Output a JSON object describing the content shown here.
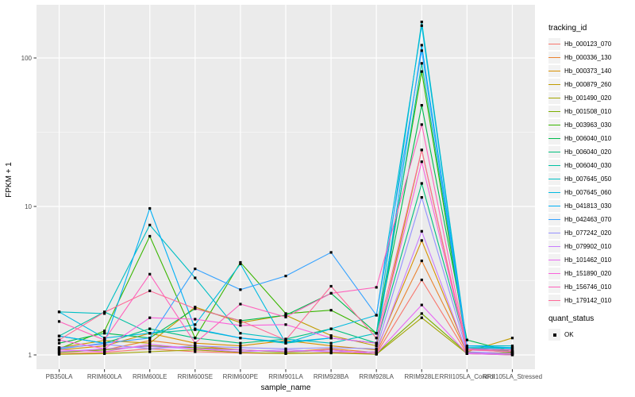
{
  "figure": {
    "background": "#FFFFFF",
    "panel_bg": "#EBEBEB",
    "grid_color": "#FFFFFF",
    "tick_color": "#333333",
    "tick_label_color": "#4D4D4D",
    "point_color": "#000000"
  },
  "legend": {
    "tracking_title": "tracking_id",
    "quant_title": "quant_status",
    "quant_items": [
      {
        "label": "OK"
      }
    ]
  },
  "chart_data": {
    "type": "line",
    "title": "",
    "xlabel": "sample_name",
    "ylabel": "FPKM + 1",
    "y_scale": "log10",
    "y_ticks": [
      1,
      10,
      100
    ],
    "y_minor_ticks": [
      3.1623,
      31.623
    ],
    "ylim": [
      1,
      200
    ],
    "grid": "white major+minor horizontal, white major vertical, grey panel",
    "legend_position": "right",
    "point_shape": "small black square (quant_status = OK)",
    "categories": [
      "PB350LA",
      "RRIM600LA",
      "RRIM600LE",
      "RRIM600SE",
      "RRIM600PE",
      "RRIM901LA",
      "RRIM928BA",
      "RRIM928LA",
      "RRIM928LE",
      "RRII105LA_Control",
      "RRII105LA_Stressed"
    ],
    "series": [
      {
        "name": "Hb_000123_070",
        "color": "#F8766D",
        "values": [
          1.02,
          1.04,
          1.1,
          1.05,
          1.03,
          1.02,
          1.04,
          1.02,
          3.2,
          1.02,
          1.01
        ]
      },
      {
        "name": "Hb_000336_130",
        "color": "#EA8331",
        "values": [
          1.05,
          1.08,
          1.25,
          1.15,
          1.08,
          1.05,
          1.1,
          1.04,
          4.3,
          1.04,
          1.02
        ]
      },
      {
        "name": "Hb_000373_140",
        "color": "#D89000",
        "values": [
          1.08,
          1.15,
          1.4,
          1.2,
          1.15,
          1.25,
          1.15,
          1.08,
          5.9,
          1.04,
          1.03
        ]
      },
      {
        "name": "Hb_000879_260",
        "color": "#C09B00",
        "values": [
          1.12,
          1.25,
          1.2,
          2.1,
          1.65,
          1.85,
          1.35,
          1.15,
          24,
          1.05,
          1.3
        ]
      },
      {
        "name": "Hb_001490_020",
        "color": "#A3A500",
        "values": [
          1.01,
          1.02,
          1.05,
          1.08,
          1.04,
          1.02,
          1.03,
          1.01,
          1.78,
          1.02,
          1.0
        ]
      },
      {
        "name": "Hb_001508_010",
        "color": "#7CAE00",
        "values": [
          1.04,
          1.08,
          1.15,
          1.12,
          1.08,
          1.04,
          1.08,
          1.02,
          1.9,
          1.03,
          1.01
        ]
      },
      {
        "name": "Hb_003963_030",
        "color": "#39B600",
        "values": [
          1.1,
          1.45,
          6.3,
          1.3,
          4.2,
          1.9,
          2.0,
          1.4,
          81,
          1.1,
          1.04
        ]
      },
      {
        "name": "Hb_006040_010",
        "color": "#00BB4E",
        "values": [
          1.2,
          1.4,
          1.3,
          2.05,
          1.7,
          1.85,
          2.6,
          1.4,
          48,
          1.26,
          1.05
        ]
      },
      {
        "name": "Hb_006040_020",
        "color": "#00BF7D",
        "values": [
          1.34,
          1.2,
          1.5,
          1.3,
          1.2,
          1.28,
          1.5,
          1.2,
          14.3,
          1.12,
          1.06
        ]
      },
      {
        "name": "Hb_006040_030",
        "color": "#00C1A3",
        "values": [
          1.34,
          1.95,
          1.4,
          1.48,
          1.3,
          1.2,
          1.3,
          1.2,
          92,
          1.12,
          1.12
        ]
      },
      {
        "name": "Hb_007645_050",
        "color": "#00BFC4",
        "values": [
          1.95,
          1.9,
          7.5,
          3.3,
          1.4,
          1.28,
          1.2,
          1.4,
          175,
          1.15,
          1.15
        ]
      },
      {
        "name": "Hb_007645_060",
        "color": "#00BAE0",
        "values": [
          1.95,
          1.3,
          1.4,
          1.6,
          4.1,
          1.2,
          1.5,
          1.85,
          165,
          1.12,
          1.1
        ]
      },
      {
        "name": "Hb_041813_030",
        "color": "#00B0F6",
        "values": [
          1.34,
          1.2,
          9.7,
          1.5,
          1.3,
          1.22,
          1.3,
          1.2,
          122,
          1.15,
          1.12
        ]
      },
      {
        "name": "Hb_042463_070",
        "color": "#35A2FF",
        "values": [
          1.1,
          1.2,
          1.3,
          3.8,
          2.75,
          3.4,
          4.9,
          1.85,
          112,
          1.1,
          1.05
        ]
      },
      {
        "name": "Hb_077242_020",
        "color": "#9590FF",
        "values": [
          1.12,
          1.18,
          1.1,
          1.15,
          1.12,
          1.1,
          1.12,
          1.1,
          11.5,
          1.05,
          1.02
        ]
      },
      {
        "name": "Hb_079902_010",
        "color": "#C77CFF",
        "values": [
          1.05,
          1.1,
          1.14,
          1.1,
          1.05,
          1.08,
          1.05,
          1.05,
          6.8,
          1.03,
          1.02
        ]
      },
      {
        "name": "Hb_101462_010",
        "color": "#E76BF3",
        "values": [
          1.08,
          1.05,
          1.18,
          1.1,
          1.08,
          1.05,
          1.08,
          1.02,
          2.17,
          1.02,
          1.0
        ]
      },
      {
        "name": "Hb_151890_020",
        "color": "#FA62DB",
        "values": [
          1.26,
          1.1,
          1.78,
          1.74,
          1.58,
          1.6,
          1.3,
          1.2,
          20,
          1.08,
          1.05
        ]
      },
      {
        "name": "Hb_156746_010",
        "color": "#FF62BC",
        "values": [
          1.68,
          1.26,
          3.5,
          1.2,
          2.2,
          1.8,
          2.6,
          2.85,
          35.6,
          1.1,
          1.08
        ]
      },
      {
        "name": "Hb_179142_010",
        "color": "#FF6A98",
        "values": [
          1.26,
          1.94,
          2.7,
          2.05,
          1.7,
          1.26,
          2.9,
          1.3,
          24,
          1.08,
          1.06
        ]
      }
    ]
  }
}
